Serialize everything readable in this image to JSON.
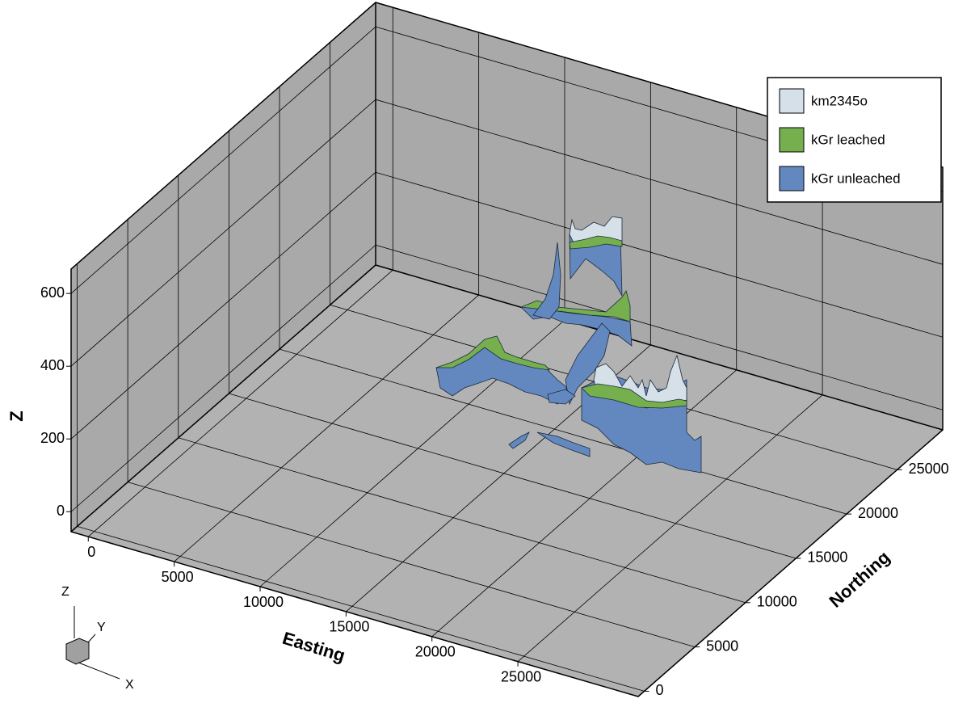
{
  "chart_data": {
    "type": "fence3d",
    "xlabel": "Easting",
    "ylabel": "Northing",
    "zlabel": "Z",
    "xlim": [
      -1000,
      32000
    ],
    "ylim": [
      -600,
      29500
    ],
    "zlim": [
      -55,
      667
    ],
    "xticks": [
      0,
      5000,
      10000,
      15000,
      20000,
      25000
    ],
    "yticks": [
      0,
      5000,
      10000,
      15000,
      20000,
      25000
    ],
    "zticks": [
      0,
      200,
      400,
      600
    ],
    "grid": true,
    "legend": "upper right",
    "series": [
      {
        "name": "km2345o",
        "color": "#d6e0e8"
      },
      {
        "name": "kGr leached",
        "color": "#76b04e"
      },
      {
        "name": "kGr unleached",
        "color": "#6388c0"
      }
    ]
  },
  "orientation_axes": {
    "x": "X",
    "y": "Y",
    "z": "Z"
  }
}
